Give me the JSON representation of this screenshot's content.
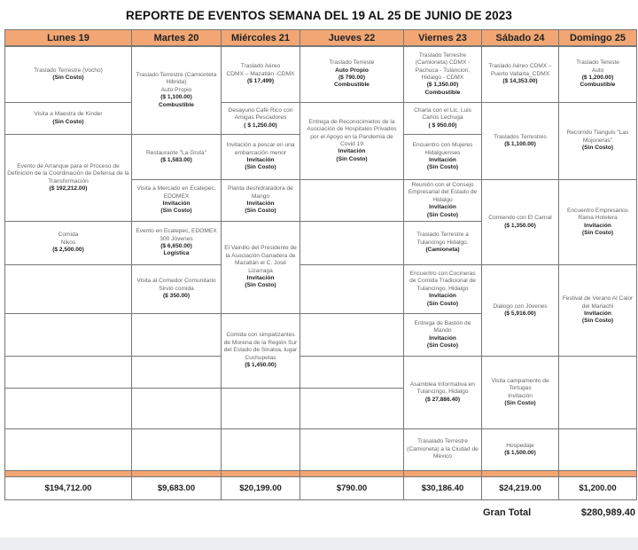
{
  "title": "REPORTE DE EVENTOS SEMANA DEL 19 AL  25 DE JUNIO DE  2023",
  "colors": {
    "header_bg": "#f2a673",
    "grid_line": "#777777",
    "text_muted": "#666666",
    "text_bold": "#222222"
  },
  "days": [
    {
      "label": "Lunes 19",
      "total": "$194,712.00",
      "cells": [
        {
          "lines": [
            {
              "t": "Traslado Terrestre (Vocho)",
              "bold": false
            },
            {
              "t": "(Sin Costo)",
              "bold": true
            }
          ]
        },
        {
          "lines": [
            {
              "t": "Visita a Maestra de Kinder",
              "bold": false
            },
            {
              "t": "(Sin Costo)",
              "bold": true
            }
          ]
        },
        {
          "lines": [
            {
              "t": "Evento de Arranque para el Proceso de Definición de la Coordinación de Defensa de la Transformación",
              "bold": false
            },
            {
              "t": "($ 192,212.00)",
              "bold": true
            }
          ]
        },
        {
          "lines": [
            {
              "t": "Comida",
              "bold": false
            },
            {
              "t": "Nikos",
              "bold": false
            },
            {
              "t": "($ 2,500.00)",
              "bold": true
            }
          ]
        },
        {
          "lines": []
        },
        {
          "lines": []
        },
        {
          "lines": []
        },
        {
          "lines": []
        },
        {
          "lines": []
        }
      ]
    },
    {
      "label": "Martes 20",
      "total": "$9,683.00",
      "cells": [
        {
          "lines": [
            {
              "t": "Traslado Terrestre (Camionteta Hibrida)",
              "bold": false
            },
            {
              "t": "Auto Propio",
              "bold": false
            },
            {
              "t": "($ 1,100.00)",
              "bold": true
            },
            {
              "t": "Combustible",
              "bold": true
            }
          ]
        },
        {
          "lines": [
            {
              "t": "Restaurante \"La Gruta\"",
              "bold": false
            },
            {
              "t": "($ 1,583.00)",
              "bold": true
            }
          ]
        },
        {
          "lines": [
            {
              "t": "Visita a Mercado en Ecatepec, EDOMEX",
              "bold": false
            },
            {
              "t": "Invitación",
              "bold": true
            },
            {
              "t": "(Sin Costo)",
              "bold": true
            }
          ]
        },
        {
          "lines": [
            {
              "t": "Evento en Ecatepec, EDOMEX 300 Jóvenes",
              "bold": false
            },
            {
              "t": "($ 6,650.00)",
              "bold": true
            },
            {
              "t": "Logística",
              "bold": true
            }
          ]
        },
        {
          "lines": [
            {
              "t": "Visita al Comedor Comunitario  Sirvió comida",
              "bold": false
            },
            {
              "t": "($ 350.00)",
              "bold": true
            }
          ]
        },
        {
          "lines": []
        },
        {
          "lines": []
        },
        {
          "lines": []
        },
        {
          "lines": []
        }
      ]
    },
    {
      "label": "Miércoles 21",
      "total": "$20,199.00",
      "cells": [
        {
          "lines": [
            {
              "t": "Traslado Aéreo",
              "bold": false
            },
            {
              "t": "CDMX – Mazatlán  -CDMX",
              "bold": false
            },
            {
              "t": "($ 17,499)",
              "bold": true
            }
          ]
        },
        {
          "lines": [
            {
              "t": "Desayuno Café Rico con Amigas  Pescadores",
              "bold": false
            },
            {
              "t": "( $ 1,250.00)",
              "bold": true
            }
          ]
        },
        {
          "lines": [
            {
              "t": "Invitación a pescar en una embarcación menor",
              "bold": false
            },
            {
              "t": "Invitación",
              "bold": true
            },
            {
              "t": "(Sin Costo)",
              "bold": true
            }
          ]
        },
        {
          "lines": [
            {
              "t": "Planta deshidratadora de Mango",
              "bold": false
            },
            {
              "t": "Invitación",
              "bold": true
            },
            {
              "t": "(Sin Costo)",
              "bold": true
            }
          ]
        },
        {
          "lines": [
            {
              "t": "El Vainillo del Presidente de la Asociación Ganadera de Mazatlán el C. José  Lizarraga",
              "bold": false
            },
            {
              "t": "Invitación",
              "bold": true
            },
            {
              "t": "(Sin Costo)",
              "bold": true
            }
          ]
        },
        {
          "lines": [
            {
              "t": "Comida con simpatizantes de Morena de la Región Sur del Estado de Sinaloa, lugar Cuchupetas",
              "bold": false
            },
            {
              "t": "($ 1,450.00)",
              "bold": true
            }
          ]
        },
        {
          "lines": []
        },
        {
          "lines": []
        }
      ]
    },
    {
      "label": "Jueves 22",
      "total": "$790.00",
      "cells": [
        {
          "lines": [
            {
              "t": "Traslado Terreste",
              "bold": false
            },
            {
              "t": "Auto Propio",
              "bold": true
            },
            {
              "t": "($ 790.00)",
              "bold": true
            },
            {
              "t": "Combustible",
              "bold": true
            }
          ]
        },
        {
          "lines": [
            {
              "t": "Entrega de Reconocimietos de la Asociación de Hospitales Privados por el Apoyo en la Pandemia de Covid 19",
              "bold": false
            },
            {
              "t": "Invitación",
              "bold": true
            },
            {
              "t": "(Sin Costo)",
              "bold": true
            }
          ]
        },
        {
          "lines": []
        },
        {
          "lines": []
        },
        {
          "lines": []
        },
        {
          "lines": []
        },
        {
          "lines": []
        },
        {
          "lines": []
        },
        {
          "lines": []
        }
      ]
    },
    {
      "label": "Viernes 23",
      "total": "$30,186.40",
      "cells": [
        {
          "lines": [
            {
              "t": "Traslado Terrestre (Camioneta) CDMX - Pachuca - Tulancion, Hidalgo - CDMX",
              "bold": false
            },
            {
              "t": "($ 1,350.00)",
              "bold": true
            },
            {
              "t": "Combustible",
              "bold": true
            }
          ]
        },
        {
          "lines": [
            {
              "t": "Charla con el Lic. Luis Carlos Lechuga",
              "bold": false
            },
            {
              "t": "( $ 950.00)",
              "bold": true
            }
          ]
        },
        {
          "lines": [
            {
              "t": "Encuentro con Mujeres Hidalguenses",
              "bold": false
            },
            {
              "t": "Invitación",
              "bold": true
            },
            {
              "t": "(Sin Costo)",
              "bold": true
            }
          ]
        },
        {
          "lines": [
            {
              "t": "Reunión con el Consejo Empresarial del Estado de Hidalgo",
              "bold": false
            },
            {
              "t": "Invitación",
              "bold": true
            },
            {
              "t": "(Sin Costo)",
              "bold": true
            }
          ]
        },
        {
          "lines": [
            {
              "t": "Traslado Terrestre a Tulancingo Hidalgo.",
              "bold": false
            },
            {
              "t": "(Camioneta)",
              "bold": true
            }
          ]
        },
        {
          "lines": [
            {
              "t": "Encuentro con Cocineras de Comida Tradicional de Tulancingo, Hidalgo",
              "bold": false
            },
            {
              "t": "Invitación",
              "bold": true
            },
            {
              "t": "(Sin Costo)",
              "bold": true
            }
          ]
        },
        {
          "lines": [
            {
              "t": "Entrega de Bastón de Mando",
              "bold": false
            },
            {
              "t": "Invitación",
              "bold": true
            },
            {
              "t": "(Sin Costo)",
              "bold": true
            }
          ]
        },
        {
          "lines": [
            {
              "t": "Asamblea Informativa en Tulancingo, Hidalgo",
              "bold": false
            },
            {
              "t": "($ 27,886.40)",
              "bold": true
            }
          ]
        },
        {
          "lines": [
            {
              "t": "Trasalado Terrestre (Camioneta) a la Ciudad de México",
              "bold": false
            }
          ]
        }
      ]
    },
    {
      "label": "Sábado 24",
      "total": "$24,219.00",
      "cells": [
        {
          "lines": [
            {
              "t": "Traslado Aéreo CDMX – Puerto Vallarta_CDMX",
              "bold": false
            },
            {
              "t": "($ 14,353.00)",
              "bold": true
            }
          ]
        },
        {
          "lines": [
            {
              "t": "Traslados Terrestres",
              "bold": false
            },
            {
              "t": "($ 1,100.00)",
              "bold": true
            }
          ]
        },
        {
          "lines": [
            {
              "t": "Comiendo con  El Carnal",
              "bold": false
            },
            {
              "t": "($ 1,350.00)",
              "bold": true
            }
          ]
        },
        {
          "lines": [
            {
              "t": "Dialogo con Jóvenes",
              "bold": false
            },
            {
              "t": "($ 5,916.00)",
              "bold": true
            }
          ]
        },
        {
          "lines": [
            {
              "t": "Visita campamento de Tortugas",
              "bold": false
            },
            {
              "t": "Invitación",
              "bold": false
            },
            {
              "t": "(Sin Costo)",
              "bold": true
            }
          ]
        },
        {
          "lines": [
            {
              "t": "Hospedaje",
              "bold": false
            },
            {
              "t": "($ 1,500.00)",
              "bold": true
            }
          ]
        }
      ]
    },
    {
      "label": "Domingo 25",
      "total": "$1,200.00",
      "cells": [
        {
          "lines": [
            {
              "t": "Traslado Tereste",
              "bold": false
            },
            {
              "t": "Auto",
              "bold": false
            },
            {
              "t": "($ 1,200.00)",
              "bold": true
            },
            {
              "t": "Combustible",
              "bold": true
            }
          ]
        },
        {
          "lines": [
            {
              "t": "Recorrido Tianguis \"Las Mojoneras\"",
              "bold": false
            },
            {
              "t": "(Sin Costo)",
              "bold": true
            }
          ]
        },
        {
          "lines": [
            {
              "t": "Encuentro Empresarios Rama Hotelera",
              "bold": false
            },
            {
              "t": "Invitación",
              "bold": true
            },
            {
              "t": "(Sin Costo)",
              "bold": true
            }
          ]
        },
        {
          "lines": [
            {
              "t": "Festival de Verano Al Calor del Mariachi",
              "bold": false
            },
            {
              "t": "Invitación",
              "bold": true
            },
            {
              "t": "(Sin Costo)",
              "bold": true
            }
          ]
        },
        {
          "lines": []
        },
        {
          "lines": []
        }
      ]
    }
  ],
  "grand_total": {
    "label": "Gran Total",
    "value": "$280,989.40"
  }
}
